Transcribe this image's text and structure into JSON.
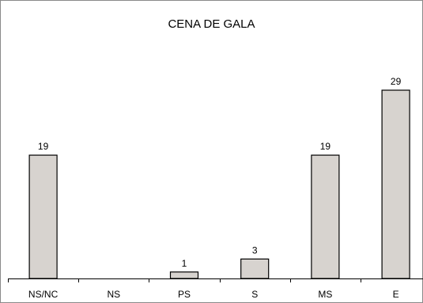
{
  "chart_data": {
    "type": "bar",
    "title": "CENA DE GALA",
    "xlabel": "",
    "ylabel": "",
    "categories": [
      "NS/NC",
      "NS",
      "PS",
      "S",
      "MS",
      "E"
    ],
    "values": [
      19,
      0,
      1,
      3,
      19,
      29
    ],
    "value_labels": [
      "19",
      "",
      "1",
      "3",
      "19",
      "29"
    ],
    "ylim": [
      0,
      29
    ],
    "grid": false,
    "legend": "none",
    "colors": {
      "bar_fill": "#d7d3cf",
      "bar_stroke": "#000000",
      "axis": "#000000",
      "frame": "#8a8a8a"
    }
  }
}
